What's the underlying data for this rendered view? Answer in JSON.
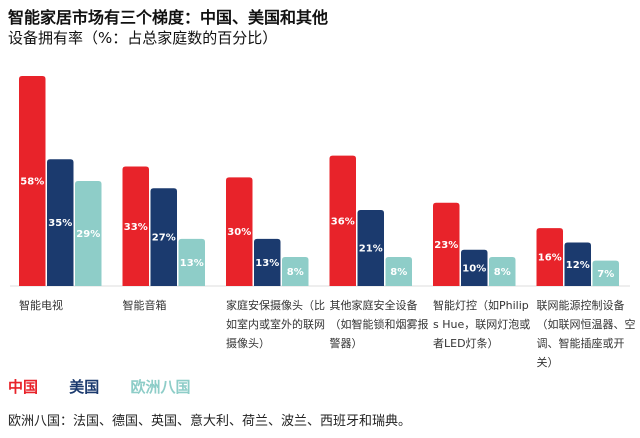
{
  "title": "智能家居市场有三个梯度：中国、美国和其他",
  "subtitle": "设备拥有率（%：占总家庭数的百分比）",
  "footnote": "欧洲八国：法国、德国、英国、意大利、荷兰、波兰、西班牙和瑞典。",
  "chart_data": {
    "type": "bar",
    "title": "智能家居市场有三个梯度：中国、美国和其他",
    "subtitle": "设备拥有率（%：占总家庭数的百分比）",
    "categories": [
      "智能电视",
      "智能音箱",
      "家庭安保摄像头（比如室内或室外的联网摄像头）",
      "其他家庭安全设备（如智能锁和烟雾报警器）",
      "智能灯控（如Philips Hue，联网灯泡或者LED灯条）",
      "联网能源控制设备（如联网恒温器、空调、智能插座或开关）"
    ],
    "series": [
      {
        "name": "中国",
        "color": "#e8232a",
        "values": [
          58,
          33,
          30,
          36,
          23,
          16
        ],
        "labels": [
          "58%",
          "33%",
          "30%",
          "36%",
          "23%",
          "16%"
        ]
      },
      {
        "name": "美国",
        "color": "#1b3a6e",
        "values": [
          35,
          27,
          13,
          21,
          10,
          12
        ],
        "labels": [
          "35%",
          "27%",
          "13%",
          "21%",
          "10%",
          "12%"
        ]
      },
      {
        "name": "欧洲八国",
        "color": "#8ecdc8",
        "values": [
          29,
          13,
          8,
          8,
          8,
          7
        ],
        "labels": [
          "29%",
          "13%",
          "8%",
          "8%",
          "8%",
          "7%"
        ]
      }
    ],
    "ylim": [
      0,
      58
    ],
    "grid": false,
    "legend_position": "bottom-left",
    "data_labels": true
  }
}
